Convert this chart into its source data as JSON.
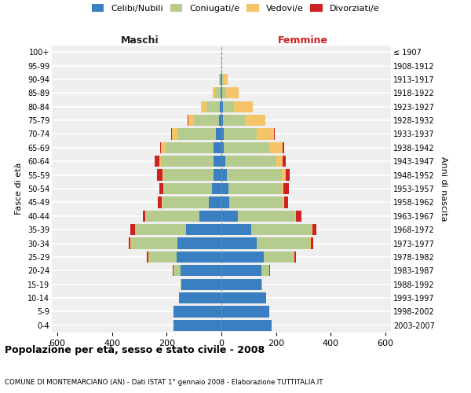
{
  "age_groups": [
    "0-4",
    "5-9",
    "10-14",
    "15-19",
    "20-24",
    "25-29",
    "30-34",
    "35-39",
    "40-44",
    "45-49",
    "50-54",
    "55-59",
    "60-64",
    "65-69",
    "70-74",
    "75-79",
    "80-84",
    "85-89",
    "90-94",
    "95-99",
    "100+"
  ],
  "birth_years": [
    "2003-2007",
    "1998-2002",
    "1993-1997",
    "1988-1992",
    "1983-1987",
    "1978-1982",
    "1973-1977",
    "1968-1972",
    "1963-1967",
    "1958-1962",
    "1953-1957",
    "1948-1952",
    "1943-1947",
    "1938-1942",
    "1933-1937",
    "1928-1932",
    "1923-1927",
    "1918-1922",
    "1913-1917",
    "1908-1912",
    "≤ 1907"
  ],
  "male_celibi": [
    175,
    175,
    155,
    145,
    150,
    165,
    160,
    130,
    80,
    45,
    35,
    30,
    30,
    30,
    20,
    10,
    5,
    3,
    2,
    0,
    0
  ],
  "male_coniugati": [
    0,
    0,
    0,
    5,
    25,
    100,
    170,
    185,
    195,
    170,
    175,
    180,
    190,
    175,
    140,
    90,
    50,
    20,
    5,
    1,
    0
  ],
  "male_vedovi": [
    0,
    0,
    0,
    0,
    1,
    2,
    2,
    2,
    2,
    2,
    3,
    5,
    8,
    15,
    20,
    20,
    20,
    10,
    2,
    0,
    0
  ],
  "male_divorziati": [
    0,
    0,
    0,
    0,
    2,
    5,
    8,
    15,
    10,
    15,
    15,
    20,
    15,
    5,
    3,
    2,
    0,
    0,
    0,
    0,
    0
  ],
  "female_nubili": [
    185,
    175,
    165,
    145,
    145,
    155,
    130,
    110,
    60,
    30,
    25,
    20,
    15,
    10,
    8,
    5,
    5,
    3,
    2,
    0,
    0
  ],
  "female_coniugate": [
    0,
    0,
    0,
    5,
    30,
    110,
    195,
    220,
    210,
    195,
    195,
    200,
    185,
    165,
    120,
    80,
    40,
    15,
    5,
    1,
    0
  ],
  "female_vedove": [
    0,
    0,
    0,
    0,
    1,
    2,
    2,
    3,
    3,
    5,
    8,
    15,
    25,
    50,
    65,
    75,
    70,
    45,
    15,
    2,
    0
  ],
  "female_divorziate": [
    0,
    0,
    0,
    0,
    2,
    5,
    10,
    15,
    20,
    15,
    20,
    15,
    10,
    5,
    3,
    2,
    0,
    0,
    0,
    0,
    0
  ],
  "colors_celibi": "#3a7fc1",
  "colors_coniugati": "#b5cc8e",
  "colors_vedovi": "#f5c469",
  "colors_divorziati": "#cc2222",
  "legend_labels": [
    "Celibi/Nubili",
    "Coniugati/e",
    "Vedovi/e",
    "Divorziati/e"
  ],
  "xlim": 620,
  "title": "Popolazione per età, sesso e stato civile - 2008",
  "subtitle": "COMUNE DI MONTEMARCIANO (AN) - Dati ISTAT 1° gennaio 2008 - Elaborazione TUTTITALIA.IT",
  "label_maschi": "Maschi",
  "label_femmine": "Femmine",
  "ylabel_left": "Fasce di età",
  "ylabel_right": "Anni di nascita",
  "bg_color": "#ffffff",
  "plot_bg_color": "#efefef"
}
